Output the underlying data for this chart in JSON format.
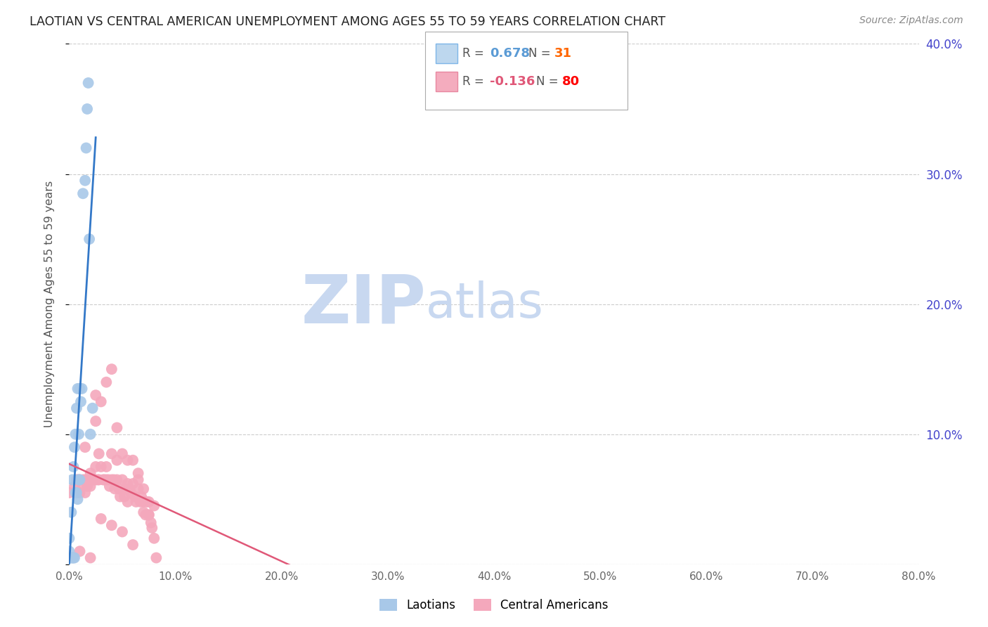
{
  "title": "LAOTIAN VS CENTRAL AMERICAN UNEMPLOYMENT AMONG AGES 55 TO 59 YEARS CORRELATION CHART",
  "source": "Source: ZipAtlas.com",
  "ylabel": "Unemployment Among Ages 55 to 59 years",
  "xlim": [
    0,
    0.8
  ],
  "ylim": [
    0,
    0.4
  ],
  "laotian_R": 0.678,
  "laotian_N": 31,
  "central_american_R": -0.136,
  "central_american_N": 80,
  "laotian_color": "#A8C8E8",
  "central_american_color": "#F4A8BC",
  "laotian_line_color": "#3378C8",
  "central_american_line_color": "#E05878",
  "background_color": "#FFFFFF",
  "grid_color": "#CCCCCC",
  "title_color": "#222222",
  "axis_label_color": "#555555",
  "right_tick_color": "#4444CC",
  "watermark_zip_color": "#C8D8F0",
  "watermark_atlas_color": "#C8D8F0",
  "legend_fill_laotian": "#BDD7EE",
  "legend_fill_ca": "#F4ACBE",
  "legend_border_laotian": "#7EB6E8",
  "legend_border_ca": "#E888A0",
  "legend_R_color_laotian": "#5B9BD5",
  "legend_R_color_ca": "#E05878",
  "legend_N_color_laotian": "#FF6600",
  "legend_N_color_ca": "#FF0000",
  "laotian_x": [
    0.0,
    0.0,
    0.0,
    0.002,
    0.002,
    0.003,
    0.003,
    0.004,
    0.004,
    0.005,
    0.005,
    0.006,
    0.006,
    0.007,
    0.007,
    0.008,
    0.008,
    0.009,
    0.009,
    0.01,
    0.01,
    0.011,
    0.012,
    0.013,
    0.015,
    0.016,
    0.017,
    0.018,
    0.019,
    0.02,
    0.022
  ],
  "laotian_y": [
    0.005,
    0.01,
    0.02,
    0.005,
    0.04,
    0.005,
    0.065,
    0.005,
    0.075,
    0.005,
    0.09,
    0.055,
    0.1,
    0.055,
    0.12,
    0.05,
    0.135,
    0.065,
    0.1,
    0.065,
    0.135,
    0.125,
    0.135,
    0.285,
    0.295,
    0.32,
    0.35,
    0.37,
    0.25,
    0.1,
    0.12
  ],
  "central_american_x": [
    0.0,
    0.005,
    0.007,
    0.008,
    0.01,
    0.01,
    0.012,
    0.013,
    0.015,
    0.015,
    0.017,
    0.018,
    0.02,
    0.02,
    0.022,
    0.023,
    0.025,
    0.025,
    0.027,
    0.028,
    0.028,
    0.03,
    0.03,
    0.032,
    0.033,
    0.035,
    0.035,
    0.037,
    0.038,
    0.04,
    0.04,
    0.042,
    0.043,
    0.045,
    0.045,
    0.047,
    0.048,
    0.05,
    0.05,
    0.052,
    0.053,
    0.055,
    0.055,
    0.057,
    0.058,
    0.06,
    0.06,
    0.062,
    0.063,
    0.065,
    0.065,
    0.067,
    0.068,
    0.07,
    0.07,
    0.072,
    0.073,
    0.075,
    0.075,
    0.077,
    0.078,
    0.08,
    0.082,
    0.01,
    0.02,
    0.03,
    0.04,
    0.05,
    0.06,
    0.07,
    0.08,
    0.025,
    0.035,
    0.045,
    0.055,
    0.065,
    0.075,
    0.015,
    0.025,
    0.04
  ],
  "central_american_y": [
    0.055,
    0.06,
    0.065,
    0.065,
    0.065,
    0.055,
    0.06,
    0.065,
    0.065,
    0.055,
    0.06,
    0.065,
    0.07,
    0.06,
    0.065,
    0.065,
    0.075,
    0.065,
    0.065,
    0.085,
    0.065,
    0.075,
    0.125,
    0.065,
    0.065,
    0.065,
    0.075,
    0.065,
    0.06,
    0.085,
    0.065,
    0.065,
    0.058,
    0.08,
    0.065,
    0.058,
    0.052,
    0.085,
    0.065,
    0.052,
    0.058,
    0.062,
    0.048,
    0.058,
    0.055,
    0.08,
    0.062,
    0.052,
    0.048,
    0.058,
    0.065,
    0.048,
    0.052,
    0.048,
    0.058,
    0.038,
    0.048,
    0.048,
    0.038,
    0.032,
    0.028,
    0.02,
    0.005,
    0.01,
    0.005,
    0.035,
    0.03,
    0.025,
    0.015,
    0.04,
    0.045,
    0.11,
    0.14,
    0.105,
    0.08,
    0.07,
    0.038,
    0.09,
    0.13,
    0.15
  ]
}
